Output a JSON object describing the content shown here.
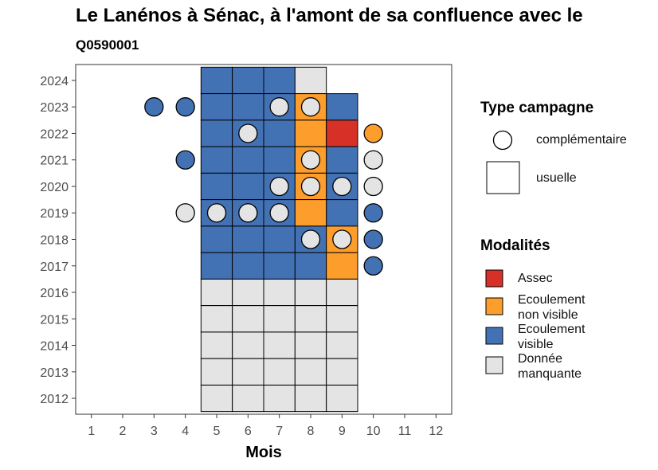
{
  "title": "Le Lanénos à Sénac, à l'amont de sa confluence avec le",
  "subtitle": "Q0590001",
  "chart_data": {
    "type": "heatmap",
    "xlabel": "Mois",
    "ylabel": "",
    "x_ticks": [
      1,
      2,
      3,
      4,
      5,
      6,
      7,
      8,
      9,
      10,
      11,
      12
    ],
    "y_ticks": [
      2012,
      2013,
      2014,
      2015,
      2016,
      2017,
      2018,
      2019,
      2020,
      2021,
      2022,
      2023,
      2024
    ],
    "xlim": [
      0.5,
      12.5
    ],
    "ylim": [
      2011.4,
      2024.6
    ],
    "grid": false,
    "legend_placement": "right",
    "modalite_colors": {
      "Assec": "#d73027",
      "Ecoulement non visible": "#fd9d2b",
      "Ecoulement visible": "#4372b4",
      "Donnée manquante": "#e4e4e4"
    },
    "usuelle": [
      {
        "year": 2024,
        "months": [
          5,
          6,
          7
        ],
        "modalite": "Ecoulement visible"
      },
      {
        "year": 2024,
        "months": [
          8
        ],
        "modalite": "Donnée manquante"
      },
      {
        "year": 2023,
        "months": [
          5,
          6,
          7,
          9
        ],
        "modalite": "Ecoulement visible"
      },
      {
        "year": 2023,
        "months": [
          8
        ],
        "modalite": "Ecoulement non visible"
      },
      {
        "year": 2022,
        "months": [
          5,
          6,
          7
        ],
        "modalite": "Ecoulement visible"
      },
      {
        "year": 2022,
        "months": [
          8
        ],
        "modalite": "Ecoulement non visible"
      },
      {
        "year": 2022,
        "months": [
          9
        ],
        "modalite": "Assec"
      },
      {
        "year": 2021,
        "months": [
          5,
          6,
          7,
          9
        ],
        "modalite": "Ecoulement visible"
      },
      {
        "year": 2021,
        "months": [
          8
        ],
        "modalite": "Ecoulement non visible"
      },
      {
        "year": 2020,
        "months": [
          5,
          6,
          7,
          9
        ],
        "modalite": "Ecoulement visible"
      },
      {
        "year": 2020,
        "months": [
          8
        ],
        "modalite": "Ecoulement non visible"
      },
      {
        "year": 2019,
        "months": [
          5,
          6,
          7,
          9
        ],
        "modalite": "Ecoulement visible"
      },
      {
        "year": 2019,
        "months": [
          8
        ],
        "modalite": "Ecoulement non visible"
      },
      {
        "year": 2018,
        "months": [
          5,
          6,
          7,
          8
        ],
        "modalite": "Ecoulement visible"
      },
      {
        "year": 2018,
        "months": [
          9
        ],
        "modalite": "Ecoulement non visible"
      },
      {
        "year": 2017,
        "months": [
          5,
          6,
          7,
          8
        ],
        "modalite": "Ecoulement visible"
      },
      {
        "year": 2017,
        "months": [
          9
        ],
        "modalite": "Ecoulement non visible"
      },
      {
        "year": 2016,
        "months": [
          5,
          6,
          7,
          8,
          9
        ],
        "modalite": "Donnée manquante"
      },
      {
        "year": 2015,
        "months": [
          5,
          6,
          7,
          8,
          9
        ],
        "modalite": "Donnée manquante"
      },
      {
        "year": 2014,
        "months": [
          5,
          6,
          7,
          8,
          9
        ],
        "modalite": "Donnée manquante"
      },
      {
        "year": 2013,
        "months": [
          5,
          6,
          7,
          8,
          9
        ],
        "modalite": "Donnée manquante"
      },
      {
        "year": 2012,
        "months": [
          5,
          6,
          7,
          8,
          9
        ],
        "modalite": "Donnée manquante"
      }
    ],
    "complementaire": [
      {
        "year": 2023,
        "month": 3,
        "modalite": "Ecoulement visible"
      },
      {
        "year": 2023,
        "month": 4,
        "modalite": "Ecoulement visible"
      },
      {
        "year": 2023,
        "month": 7,
        "modalite": "Donnée manquante"
      },
      {
        "year": 2023,
        "month": 8,
        "modalite": "Donnée manquante"
      },
      {
        "year": 2022,
        "month": 6,
        "modalite": "Donnée manquante"
      },
      {
        "year": 2022,
        "month": 10,
        "modalite": "Ecoulement non visible"
      },
      {
        "year": 2021,
        "month": 4,
        "modalite": "Ecoulement visible"
      },
      {
        "year": 2021,
        "month": 8,
        "modalite": "Donnée manquante"
      },
      {
        "year": 2021,
        "month": 10,
        "modalite": "Donnée manquante"
      },
      {
        "year": 2020,
        "month": 7,
        "modalite": "Donnée manquante"
      },
      {
        "year": 2020,
        "month": 8,
        "modalite": "Donnée manquante"
      },
      {
        "year": 2020,
        "month": 9,
        "modalite": "Donnée manquante"
      },
      {
        "year": 2020,
        "month": 10,
        "modalite": "Donnée manquante"
      },
      {
        "year": 2019,
        "month": 4,
        "modalite": "Donnée manquante"
      },
      {
        "year": 2019,
        "month": 5,
        "modalite": "Donnée manquante"
      },
      {
        "year": 2019,
        "month": 6,
        "modalite": "Donnée manquante"
      },
      {
        "year": 2019,
        "month": 7,
        "modalite": "Donnée manquante"
      },
      {
        "year": 2019,
        "month": 10,
        "modalite": "Ecoulement visible"
      },
      {
        "year": 2018,
        "month": 8,
        "modalite": "Donnée manquante"
      },
      {
        "year": 2018,
        "month": 9,
        "modalite": "Donnée manquante"
      },
      {
        "year": 2018,
        "month": 10,
        "modalite": "Ecoulement visible"
      },
      {
        "year": 2017,
        "month": 10,
        "modalite": "Ecoulement visible"
      }
    ]
  },
  "legend": {
    "type_campagne_title": "Type campagne",
    "type_campagne": [
      "complémentaire",
      "usuelle"
    ],
    "modalites_title": "Modalités",
    "modalites": [
      {
        "key": "Assec",
        "line1": "Assec",
        "line2": ""
      },
      {
        "key": "Ecoulement non visible",
        "line1": "Ecoulement",
        "line2": "non visible"
      },
      {
        "key": "Ecoulement visible",
        "line1": "Ecoulement",
        "line2": "visible"
      },
      {
        "key": "Donnée manquante",
        "line1": "Donnée",
        "line2": "manquante"
      }
    ]
  }
}
